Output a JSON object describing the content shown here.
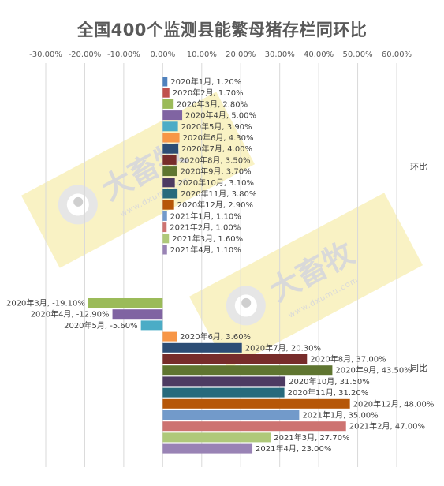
{
  "chart_data": {
    "type": "bar",
    "orientation": "horizontal",
    "title": "全国400个监测县能繁母猪存栏同环比",
    "xlim": [
      -30,
      60
    ],
    "xticks": [
      "-30.00%",
      "-20.00%",
      "-10.00%",
      "0.00%",
      "10.00%",
      "20.00%",
      "30.00%",
      "40.00%",
      "50.00%",
      "60.00%"
    ],
    "tick_values": [
      -30,
      -20,
      -10,
      0,
      10,
      20,
      30,
      40,
      50,
      60
    ],
    "grid": true,
    "groups": [
      {
        "name": "环比",
        "series": [
          {
            "category": "2020年1月",
            "value": 1.2,
            "label": "2020年1月, 1.20%",
            "color": "#4f81bd"
          },
          {
            "category": "2020年2月",
            "value": 1.7,
            "label": "2020年2月, 1.70%",
            "color": "#c0504d"
          },
          {
            "category": "2020年3月",
            "value": 2.8,
            "label": "2020年3月, 2.80%",
            "color": "#9bbb59"
          },
          {
            "category": "2020年4月",
            "value": 5.0,
            "label": "2020年4月, 5.00%",
            "color": "#8064a2"
          },
          {
            "category": "2020年5月",
            "value": 3.9,
            "label": "2020年5月, 3.90%",
            "color": "#4bacc6"
          },
          {
            "category": "2020年6月",
            "value": 4.3,
            "label": "2020年6月, 4.30%",
            "color": "#f79646"
          },
          {
            "category": "2020年7月",
            "value": 4.0,
            "label": "2020年7月, 4.00%",
            "color": "#2c4d75"
          },
          {
            "category": "2020年8月",
            "value": 3.5,
            "label": "2020年8月, 3.50%",
            "color": "#772c2a"
          },
          {
            "category": "2020年9月",
            "value": 3.7,
            "label": "2020年9月, 3.70%",
            "color": "#5f7530"
          },
          {
            "category": "2020年10月",
            "value": 3.1,
            "label": "2020年10月, 3.10%",
            "color": "#4d3b62"
          },
          {
            "category": "2020年11月",
            "value": 3.8,
            "label": "2020年11月, 3.80%",
            "color": "#276a7c"
          },
          {
            "category": "2020年12月",
            "value": 2.9,
            "label": "2020年12月, 2.90%",
            "color": "#b65708"
          },
          {
            "category": "2021年1月",
            "value": 1.1,
            "label": "2021年1月, 1.10%",
            "color": "#729aca"
          },
          {
            "category": "2021年2月",
            "value": 1.0,
            "label": "2021年2月, 1.00%",
            "color": "#cd7371"
          },
          {
            "category": "2021年3月",
            "value": 1.6,
            "label": "2021年3月, 1.60%",
            "color": "#afc97a"
          },
          {
            "category": "2021年4月",
            "value": 1.1,
            "label": "2021年4月, 1.10%",
            "color": "#9983b5"
          }
        ]
      },
      {
        "name": "同比",
        "series": [
          {
            "category": "2020年3月",
            "value": -19.1,
            "label": "2020年3月, -19.10%",
            "color": "#9bbb59"
          },
          {
            "category": "2020年4月",
            "value": -12.9,
            "label": "2020年4月, -12.90%",
            "color": "#8064a2"
          },
          {
            "category": "2020年5月",
            "value": -5.6,
            "label": "2020年5月, -5.60%",
            "color": "#4bacc6"
          },
          {
            "category": "2020年6月",
            "value": 3.6,
            "label": "2020年6月, 3.60%",
            "color": "#f79646"
          },
          {
            "category": "2020年7月",
            "value": 20.3,
            "label": "2020年7月, 20.30%",
            "color": "#2c4d75"
          },
          {
            "category": "2020年8月",
            "value": 37.0,
            "label": "2020年8月, 37.00%",
            "color": "#772c2a"
          },
          {
            "category": "2020年9月",
            "value": 43.5,
            "label": "2020年9月, 43.50%",
            "color": "#5f7530"
          },
          {
            "category": "2020年10月",
            "value": 31.5,
            "label": "2020年10月, 31.50%",
            "color": "#4d3b62"
          },
          {
            "category": "2020年11月",
            "value": 31.2,
            "label": "2020年11月, 31.20%",
            "color": "#276a7c"
          },
          {
            "category": "2020年12月",
            "value": 48.0,
            "label": "2020年12月, 48.00%",
            "color": "#b65708"
          },
          {
            "category": "2021年1月",
            "value": 35.0,
            "label": "2021年1月, 35.00%",
            "color": "#729aca"
          },
          {
            "category": "2021年2月",
            "value": 47.0,
            "label": "2021年2月, 47.00%",
            "color": "#cd7371"
          },
          {
            "category": "2021年3月",
            "value": 27.7,
            "label": "2021年3月, 27.70%",
            "color": "#afc97a"
          },
          {
            "category": "2021年4月",
            "value": 23.0,
            "label": "2021年4月, 23.00%",
            "color": "#9983b5"
          }
        ]
      }
    ]
  },
  "watermark": {
    "brand": "大畜牧",
    "site": "www.dxumu.com",
    "band_color": "#f7eeb0",
    "text_color": "#d9d9d9"
  }
}
